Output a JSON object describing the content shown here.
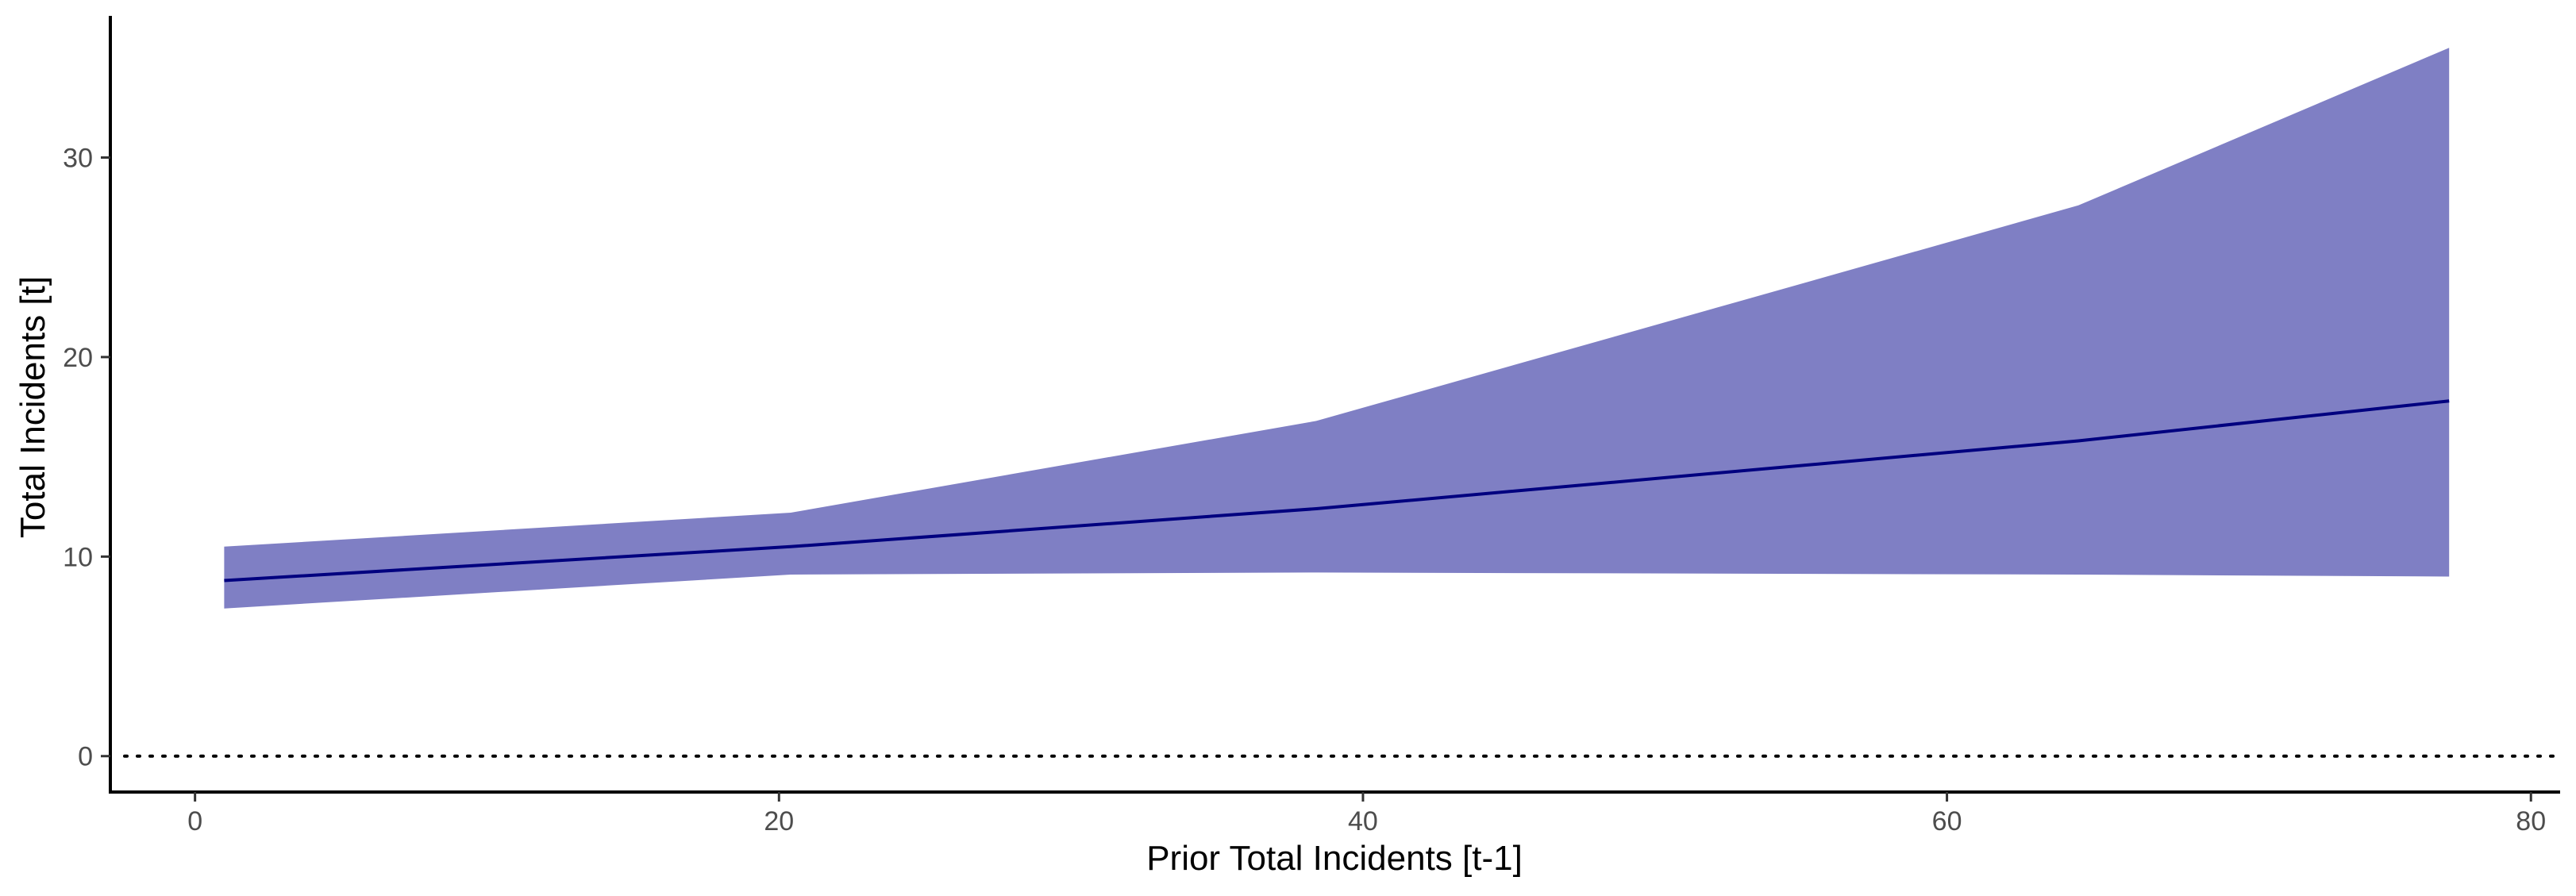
{
  "chart_data": {
    "type": "line",
    "title": "",
    "xlabel": "Prior Total Incidents [t-1]",
    "ylabel": "Total Incidents [t]",
    "xlim": [
      -2.9,
      81.0
    ],
    "ylim": [
      -1.8,
      37.1
    ],
    "xticks": [
      0,
      20,
      40,
      60,
      80
    ],
    "yticks": [
      0,
      10,
      20,
      30
    ],
    "grid": false,
    "legend": "none",
    "reference_line": {
      "y": 0,
      "style": "dotted",
      "color": "#000000"
    },
    "series": [
      {
        "x": [
          1,
          20.4,
          38.4,
          64.5,
          77.2
        ],
        "y": [
          8.8,
          10.5,
          12.4,
          15.8,
          17.8
        ],
        "lower": [
          7.4,
          9.1,
          9.2,
          9.1,
          9.0
        ],
        "upper": [
          10.5,
          12.2,
          16.8,
          27.6,
          35.5
        ],
        "line_color": "#00007f",
        "band_color": "#7f7fc4"
      }
    ]
  }
}
